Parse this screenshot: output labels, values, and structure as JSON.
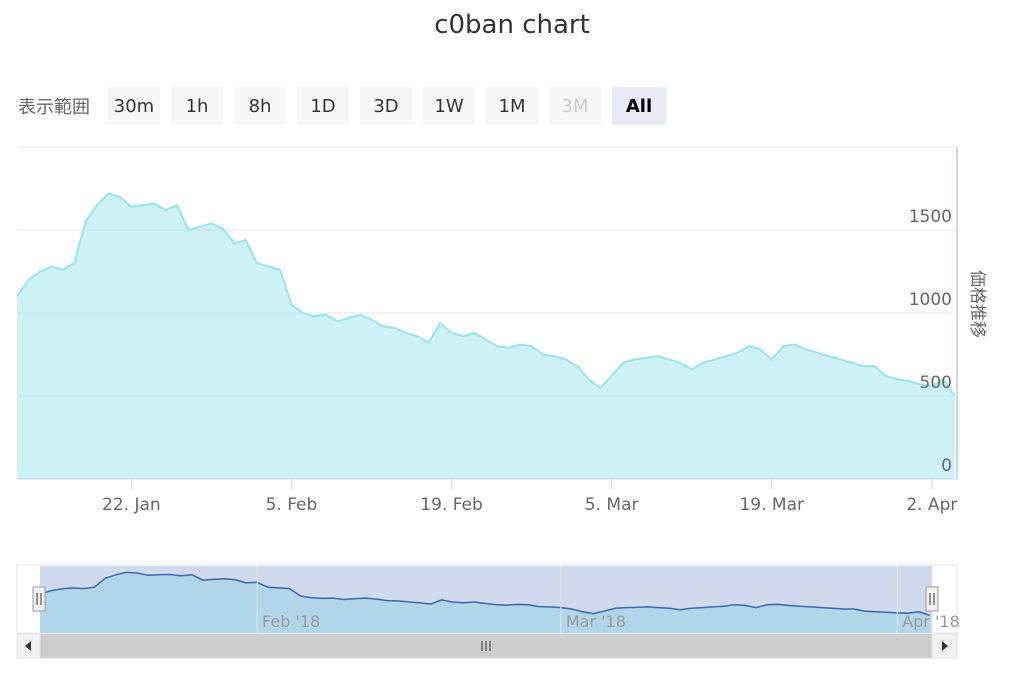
{
  "chart_data": {
    "type": "area",
    "title": "c0ban chart",
    "ylabel": "価格推移",
    "xlabel": "",
    "x_ticks": [
      "22. Jan",
      "5. Feb",
      "19. Feb",
      "5. Mar",
      "19. Mar",
      "2. Apr"
    ],
    "y_ticks": [
      "0",
      "500",
      "1000",
      "1500"
    ],
    "ylim": [
      0,
      2000
    ],
    "grid": true,
    "navigator_ticks": [
      "Feb '18",
      "Mar '18",
      "Apr '18"
    ],
    "series": [
      {
        "color": "#9be3ec",
        "x": [
          "2018-01-12",
          "2018-01-13",
          "2018-01-14",
          "2018-01-15",
          "2018-01-16",
          "2018-01-17",
          "2018-01-18",
          "2018-01-19",
          "2018-01-20",
          "2018-01-21",
          "2018-01-22",
          "2018-01-23",
          "2018-01-24",
          "2018-01-25",
          "2018-01-26",
          "2018-01-27",
          "2018-01-28",
          "2018-01-29",
          "2018-01-30",
          "2018-01-31",
          "2018-02-01",
          "2018-02-02",
          "2018-02-03",
          "2018-02-04",
          "2018-02-05",
          "2018-02-06",
          "2018-02-07",
          "2018-02-08",
          "2018-02-09",
          "2018-02-10",
          "2018-02-11",
          "2018-02-12",
          "2018-02-13",
          "2018-02-14",
          "2018-02-15",
          "2018-02-16",
          "2018-02-17",
          "2018-02-18",
          "2018-02-19",
          "2018-02-20",
          "2018-02-21",
          "2018-02-22",
          "2018-02-23",
          "2018-02-24",
          "2018-02-25",
          "2018-02-26",
          "2018-02-27",
          "2018-02-28",
          "2018-03-01",
          "2018-03-02",
          "2018-03-03",
          "2018-03-04",
          "2018-03-05",
          "2018-03-06",
          "2018-03-07",
          "2018-03-08",
          "2018-03-09",
          "2018-03-10",
          "2018-03-11",
          "2018-03-12",
          "2018-03-13",
          "2018-03-14",
          "2018-03-15",
          "2018-03-16",
          "2018-03-17",
          "2018-03-18",
          "2018-03-19",
          "2018-03-20",
          "2018-03-21",
          "2018-03-22",
          "2018-03-23",
          "2018-03-24",
          "2018-03-25",
          "2018-03-26",
          "2018-03-27",
          "2018-03-28",
          "2018-03-29",
          "2018-03-30",
          "2018-03-31",
          "2018-04-01",
          "2018-04-02",
          "2018-04-03",
          "2018-04-04"
        ],
        "values": [
          1100,
          1200,
          1250,
          1280,
          1260,
          1300,
          1550,
          1650,
          1720,
          1700,
          1640,
          1650,
          1660,
          1620,
          1650,
          1500,
          1520,
          1540,
          1510,
          1420,
          1440,
          1300,
          1280,
          1260,
          1050,
          1000,
          980,
          990,
          950,
          970,
          990,
          960,
          920,
          910,
          880,
          860,
          820,
          940,
          880,
          860,
          880,
          840,
          800,
          790,
          810,
          800,
          750,
          740,
          720,
          680,
          600,
          550,
          620,
          700,
          720,
          730,
          740,
          720,
          700,
          660,
          700,
          720,
          740,
          760,
          800,
          780,
          720,
          800,
          810,
          780,
          760,
          740,
          720,
          700,
          680,
          680,
          620,
          600,
          590,
          570,
          560,
          600,
          500
        ]
      }
    ]
  }
}
